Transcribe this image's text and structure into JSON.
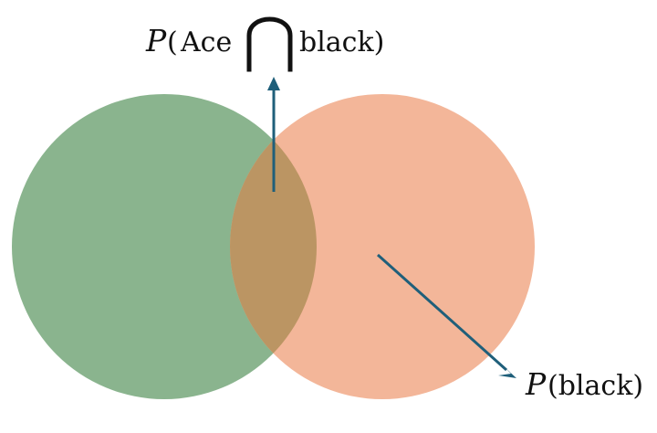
{
  "diagram": {
    "type": "venn",
    "colors": {
      "left_circle": "#8ab48e",
      "right_circle": "#f3b699",
      "intersection": "#bb9563",
      "arrow": "#1f5f7a",
      "text": "#111111"
    },
    "labels": {
      "intersection": {
        "p_symbol": "P",
        "open_paren": "(",
        "left_term": "Ace",
        "operator_icon": "intersection-symbol",
        "right_term": "black)"
      },
      "black": {
        "p_symbol": "P",
        "term": "(black)"
      }
    }
  }
}
